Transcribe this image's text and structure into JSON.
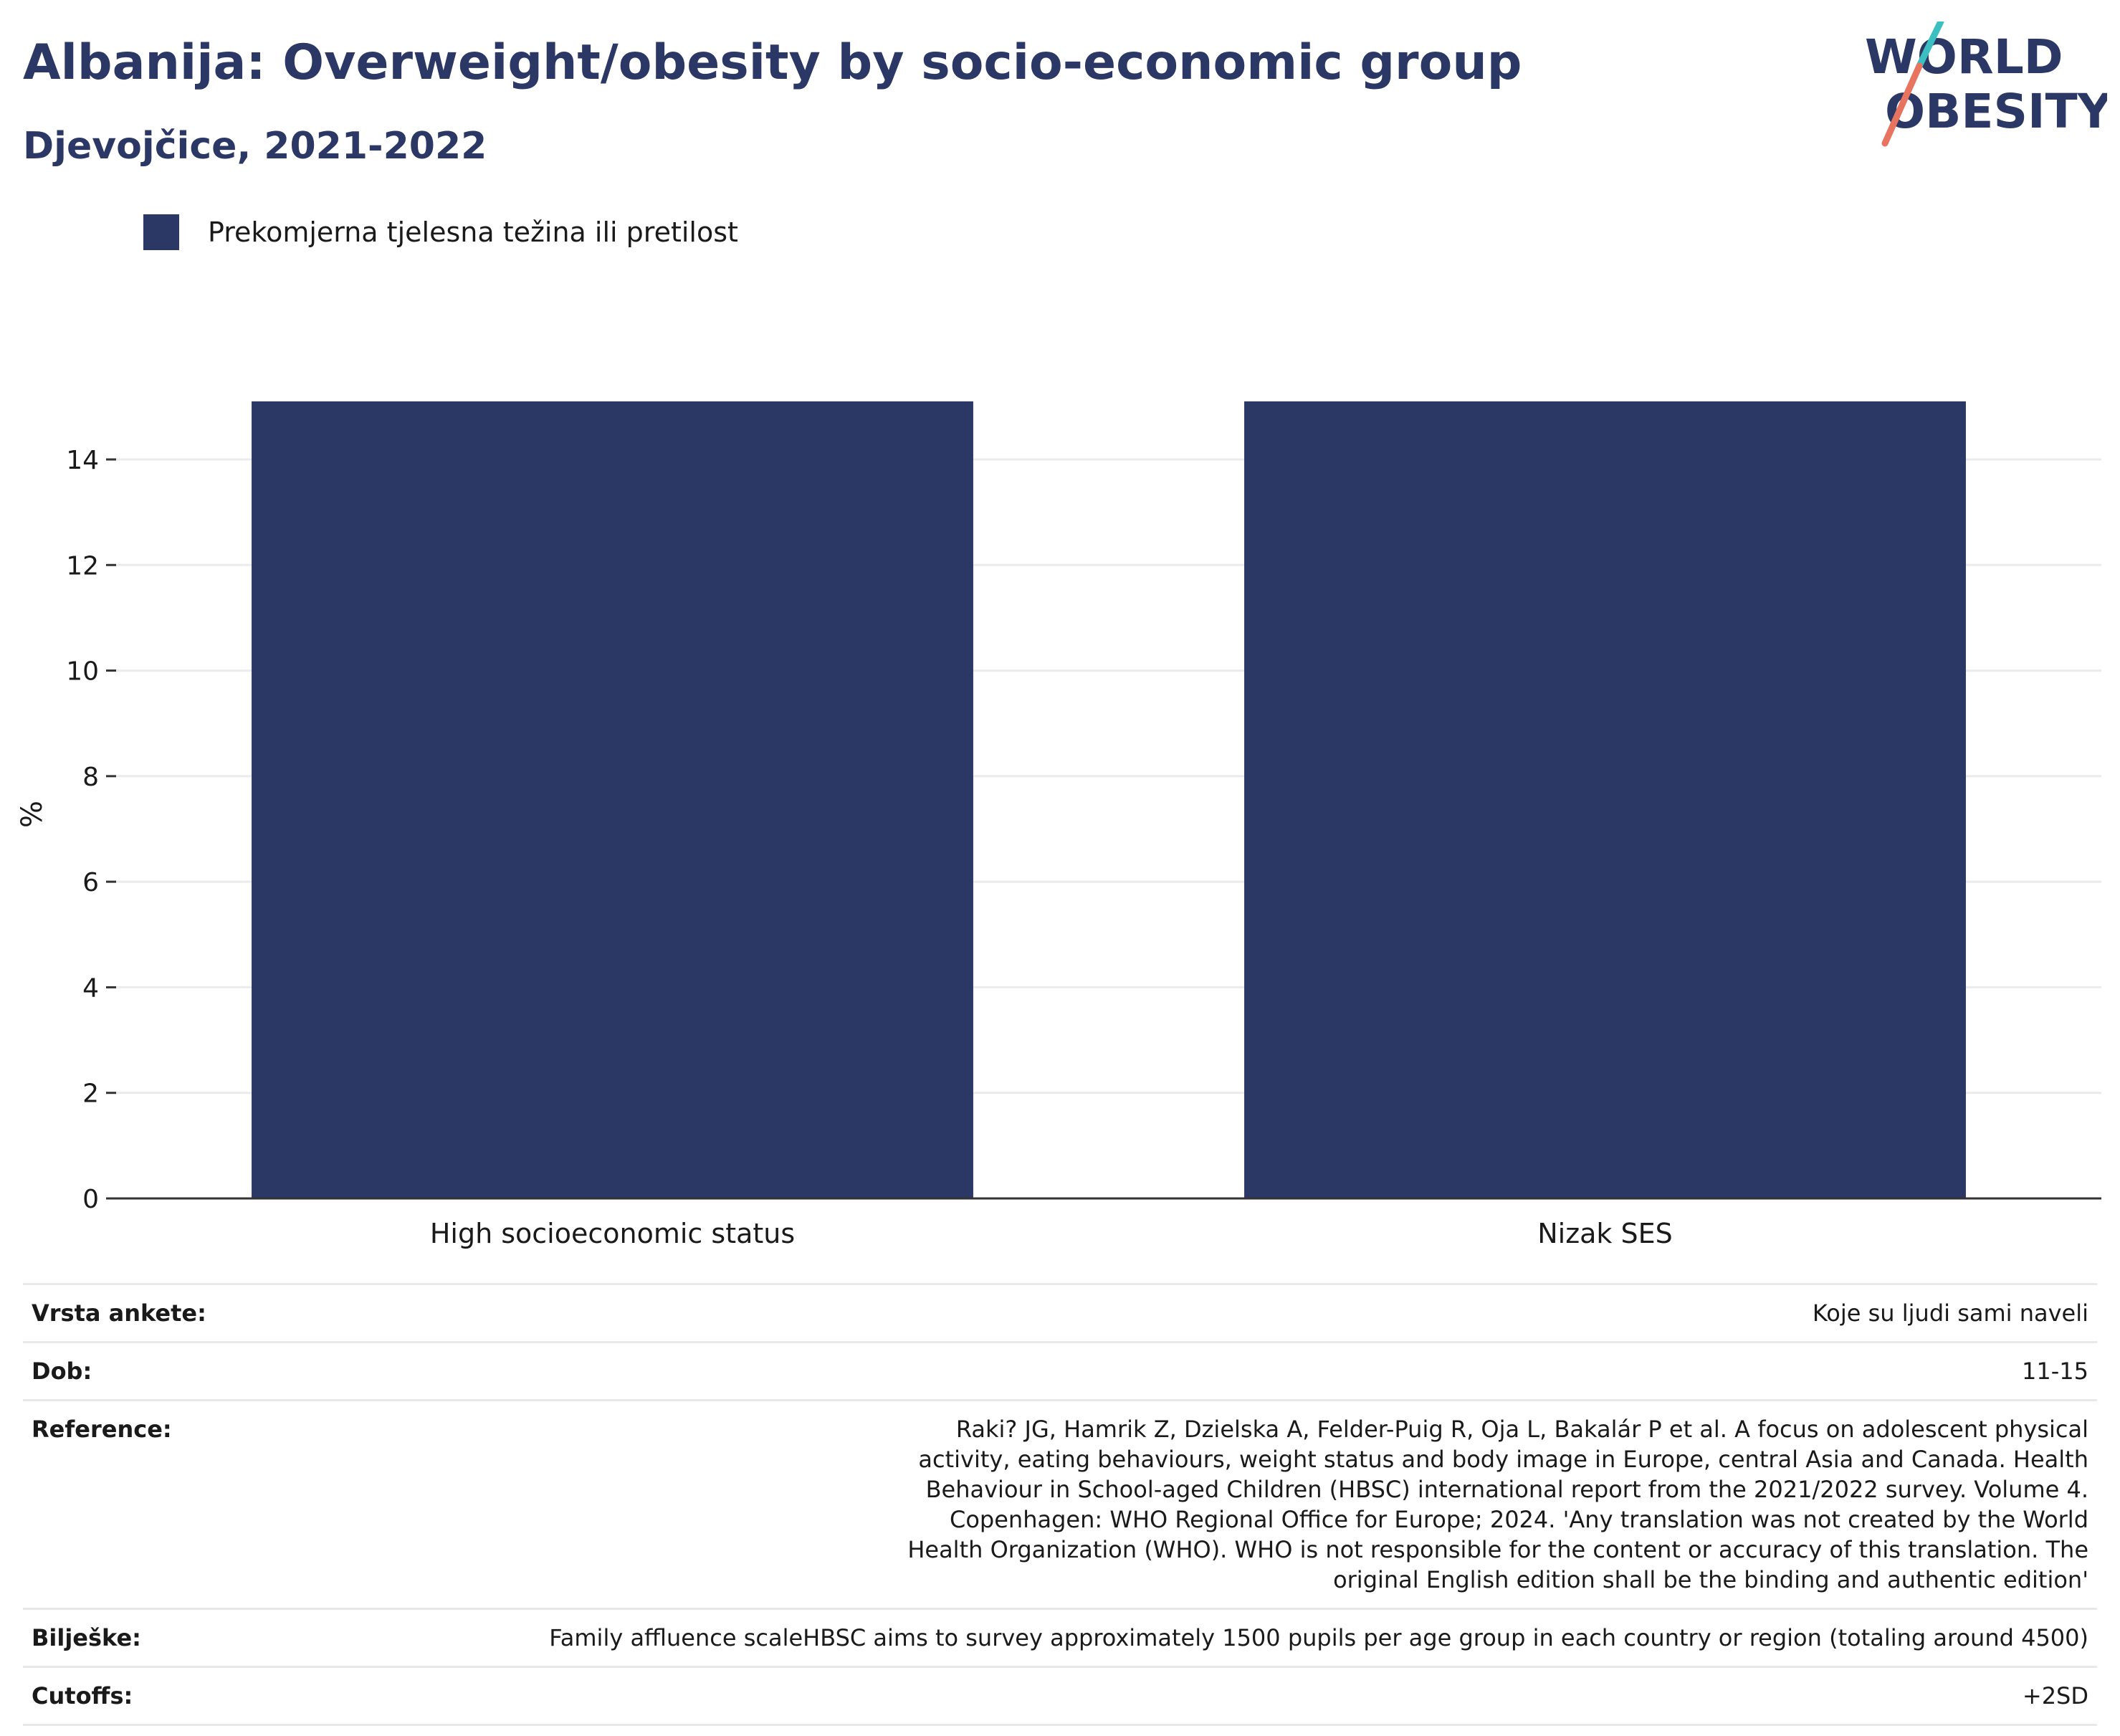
{
  "header": {
    "title": "Albanija: Overweight/obesity by socio-economic group",
    "subtitle": "Djevojčice, 2021-2022"
  },
  "logo": {
    "line1": "WORLD",
    "line2": "OBESITY",
    "colors": {
      "text": "#2b3765",
      "slash_teal": "#3bbfc1",
      "slash_coral": "#e8735f"
    }
  },
  "colors": {
    "bar": "#2b3765",
    "grid": "#ebebeb",
    "axis": "#333333"
  },
  "chart_data": {
    "type": "bar",
    "categories": [
      "High socioeconomic status",
      "Nizak SES"
    ],
    "series": [
      {
        "name": "Prekomjerna tjelesna težina ili pretilost",
        "values": [
          15.1,
          15.1
        ]
      }
    ],
    "ylabel": "%",
    "xlabel": "",
    "ylim": [
      0,
      15.1
    ],
    "yticks": [
      0,
      2,
      4,
      6,
      8,
      10,
      12,
      14
    ],
    "grid": true,
    "legend_position": "top-left"
  },
  "info": {
    "rows": [
      {
        "label": "Vrsta ankete:",
        "value": "Koje su ljudi sami naveli"
      },
      {
        "label": "Dob:",
        "value": "11-15"
      },
      {
        "label": "Reference:",
        "value": "Raki? JG, Hamrik Z, Dzielska A, Felder-Puig R, Oja L, Bakalár P et al. A focus on adolescent physical activity, eating behaviours, weight status and body image in Europe, central Asia and Canada. Health Behaviour in School-aged Children (HBSC) international report from the 2021/2022 survey. Volume 4. Copenhagen: WHO Regional Office for Europe; 2024. 'Any translation was not created by the World Health Organization (WHO). WHO is not responsible for the content or accuracy of this translation. The original English edition shall be the binding and authentic edition'"
      },
      {
        "label": "Bilješke:",
        "value": "Family affluence scaleHBSC aims to survey approximately 1500 pupils per age group in each country or region (totaling around 4500)"
      },
      {
        "label": "Cutoffs:",
        "value": "+2SD"
      }
    ]
  }
}
